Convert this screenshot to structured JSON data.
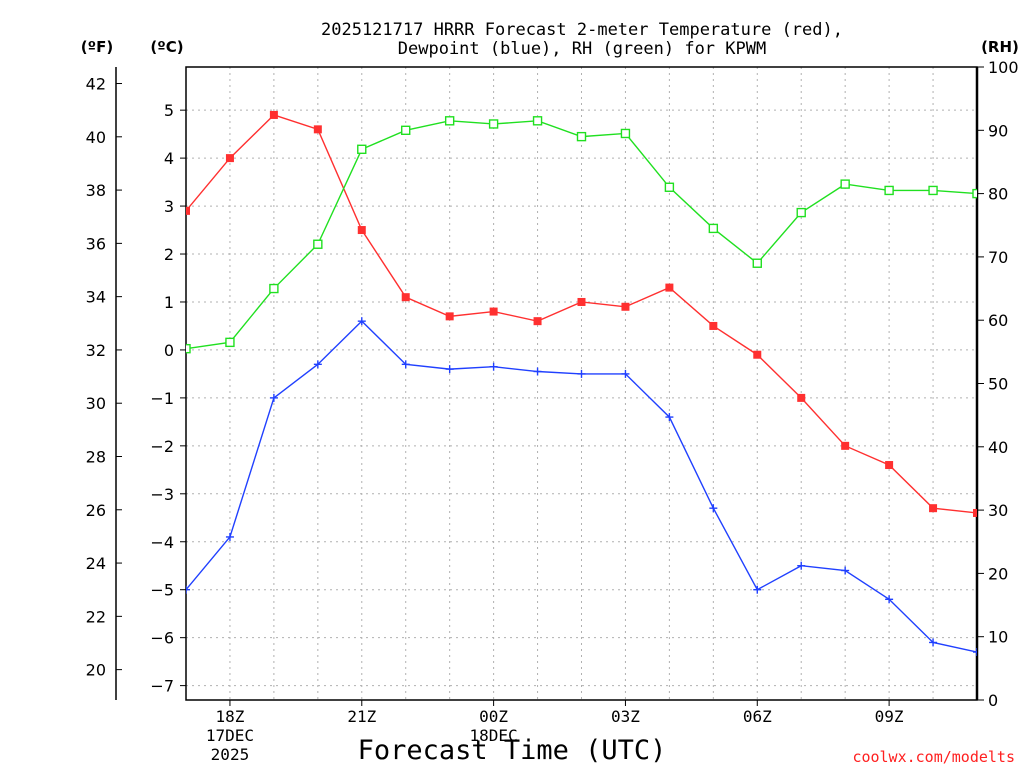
{
  "chart_data": {
    "type": "line",
    "title_line1": "2025121717 HRRR Forecast 2-meter Temperature (red),",
    "title_line2": "Dewpoint (blue), RH (green) for KPWM",
    "xlabel": "Forecast Time (UTC)",
    "credit": "coolwx.com/modelts",
    "units": {
      "left_outer": "(ºF)",
      "left_inner": "(ºC)",
      "right": "(RH)"
    },
    "x_hours": [
      17,
      18,
      19,
      20,
      21,
      22,
      23,
      24,
      25,
      26,
      27,
      28,
      29,
      30,
      31,
      32,
      33,
      34,
      35
    ],
    "x_ticks": [
      {
        "hour": 18,
        "label": "18Z",
        "sub1": "17DEC",
        "sub2": "2025"
      },
      {
        "hour": 21,
        "label": "21Z",
        "sub1": "",
        "sub2": ""
      },
      {
        "hour": 24,
        "label": "00Z",
        "sub1": "18DEC",
        "sub2": ""
      },
      {
        "hour": 27,
        "label": "03Z",
        "sub1": "",
        "sub2": ""
      },
      {
        "hour": 30,
        "label": "06Z",
        "sub1": "",
        "sub2": ""
      },
      {
        "hour": 33,
        "label": "09Z",
        "sub1": "",
        "sub2": ""
      }
    ],
    "celsius_axis": {
      "min": -7.3,
      "max": 5.9,
      "ticks": [
        -7,
        -6,
        -5,
        -4,
        -3,
        -2,
        -1,
        0,
        1,
        2,
        3,
        4,
        5
      ]
    },
    "fahrenheit_ticks": [
      20,
      22,
      24,
      26,
      28,
      30,
      32,
      34,
      36,
      38,
      40,
      42
    ],
    "rh_axis": {
      "min": 0,
      "max": 100,
      "ticks": [
        0,
        10,
        20,
        30,
        40,
        50,
        60,
        70,
        80,
        90,
        100
      ]
    },
    "series": [
      {
        "name": "Temperature",
        "unit": "C",
        "color": "#ff3030",
        "values": [
          2.9,
          4.0,
          4.9,
          4.6,
          2.5,
          1.1,
          0.7,
          0.8,
          0.6,
          1.0,
          0.9,
          1.3,
          0.5,
          -0.1,
          -1.0,
          -2.0,
          -2.4,
          -3.3,
          -3.4
        ]
      },
      {
        "name": "Dewpoint",
        "unit": "C",
        "color": "#2040ff",
        "values": [
          -5.0,
          -3.9,
          -1.0,
          -0.3,
          0.6,
          -0.3,
          -0.4,
          -0.35,
          -0.45,
          -0.5,
          -0.5,
          -1.4,
          -3.3,
          -5.0,
          -4.5,
          -4.6,
          -5.2,
          -6.1,
          -6.3
        ]
      },
      {
        "name": "RH",
        "unit": "%",
        "color": "#20e020",
        "values": [
          55.5,
          56.5,
          65,
          72,
          87,
          90,
          91.5,
          91,
          91.5,
          89,
          89.5,
          81,
          74.5,
          69,
          77,
          81.5,
          80.5,
          80.5,
          80
        ]
      }
    ]
  }
}
